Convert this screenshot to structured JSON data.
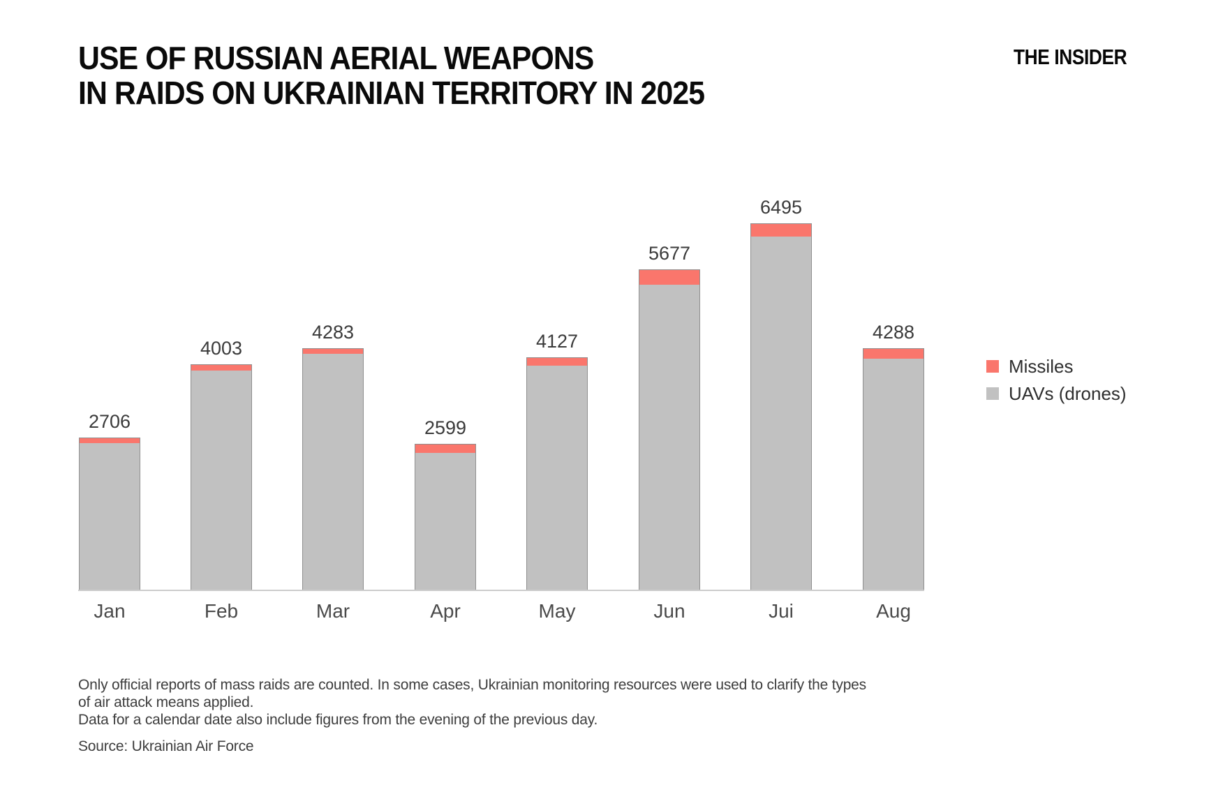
{
  "header": {
    "title_line1": "USE OF RUSSIAN AERIAL WEAPONS",
    "title_line2": "IN RAIDS ON UKRAINIAN TERRITORY IN 2025",
    "brand": "THE INSIDER"
  },
  "legend": [
    {
      "label": "Missiles",
      "color": "#fa766c"
    },
    {
      "label": "UAVs (drones)",
      "color": "#c1c1c1"
    }
  ],
  "chart_data": {
    "type": "bar",
    "subtype": "stacked",
    "title": "USE OF RUSSIAN AERIAL WEAPONS IN RAIDS ON UKRAINIAN TERRITORY IN 2025",
    "categories": [
      "Jan",
      "Feb",
      "Mar",
      "Apr",
      "May",
      "Jun",
      "Jui",
      "Aug"
    ],
    "totals": [
      2706,
      4003,
      4283,
      2599,
      4127,
      5677,
      6495,
      4288
    ],
    "series": [
      {
        "name": "UAVs (drones)",
        "color": "#c1c1c1",
        "stack_position": "bottom",
        "values": [
          2621,
          3903,
          4193,
          2449,
          3992,
          5417,
          6275,
          4113
        ],
        "note": "estimated from bar proportions (not labeled)"
      },
      {
        "name": "Missiles",
        "color": "#fa766c",
        "stack_position": "top",
        "values": [
          85,
          100,
          90,
          150,
          135,
          260,
          220,
          175
        ],
        "note": "estimated from bar proportions (not labeled)"
      }
    ],
    "value_labels": "totals shown above each bar",
    "xlabel": "",
    "ylabel": "",
    "ylim": [
      0,
      6495
    ],
    "grid": false,
    "legend_position": "right",
    "bar_outline_color": "#8f8f8f",
    "baseline_color": "#cccccc",
    "label_color": "#3a3a3a"
  },
  "footnote": {
    "lines": [
      "Only official reports of mass raids are counted. In some cases, Ukrainian monitoring resources were used to clarify the types",
      "of air attack means applied.",
      "Data for a calendar date also include figures from the evening of the previous day."
    ],
    "source": "Source: Ukrainian Air Force"
  }
}
